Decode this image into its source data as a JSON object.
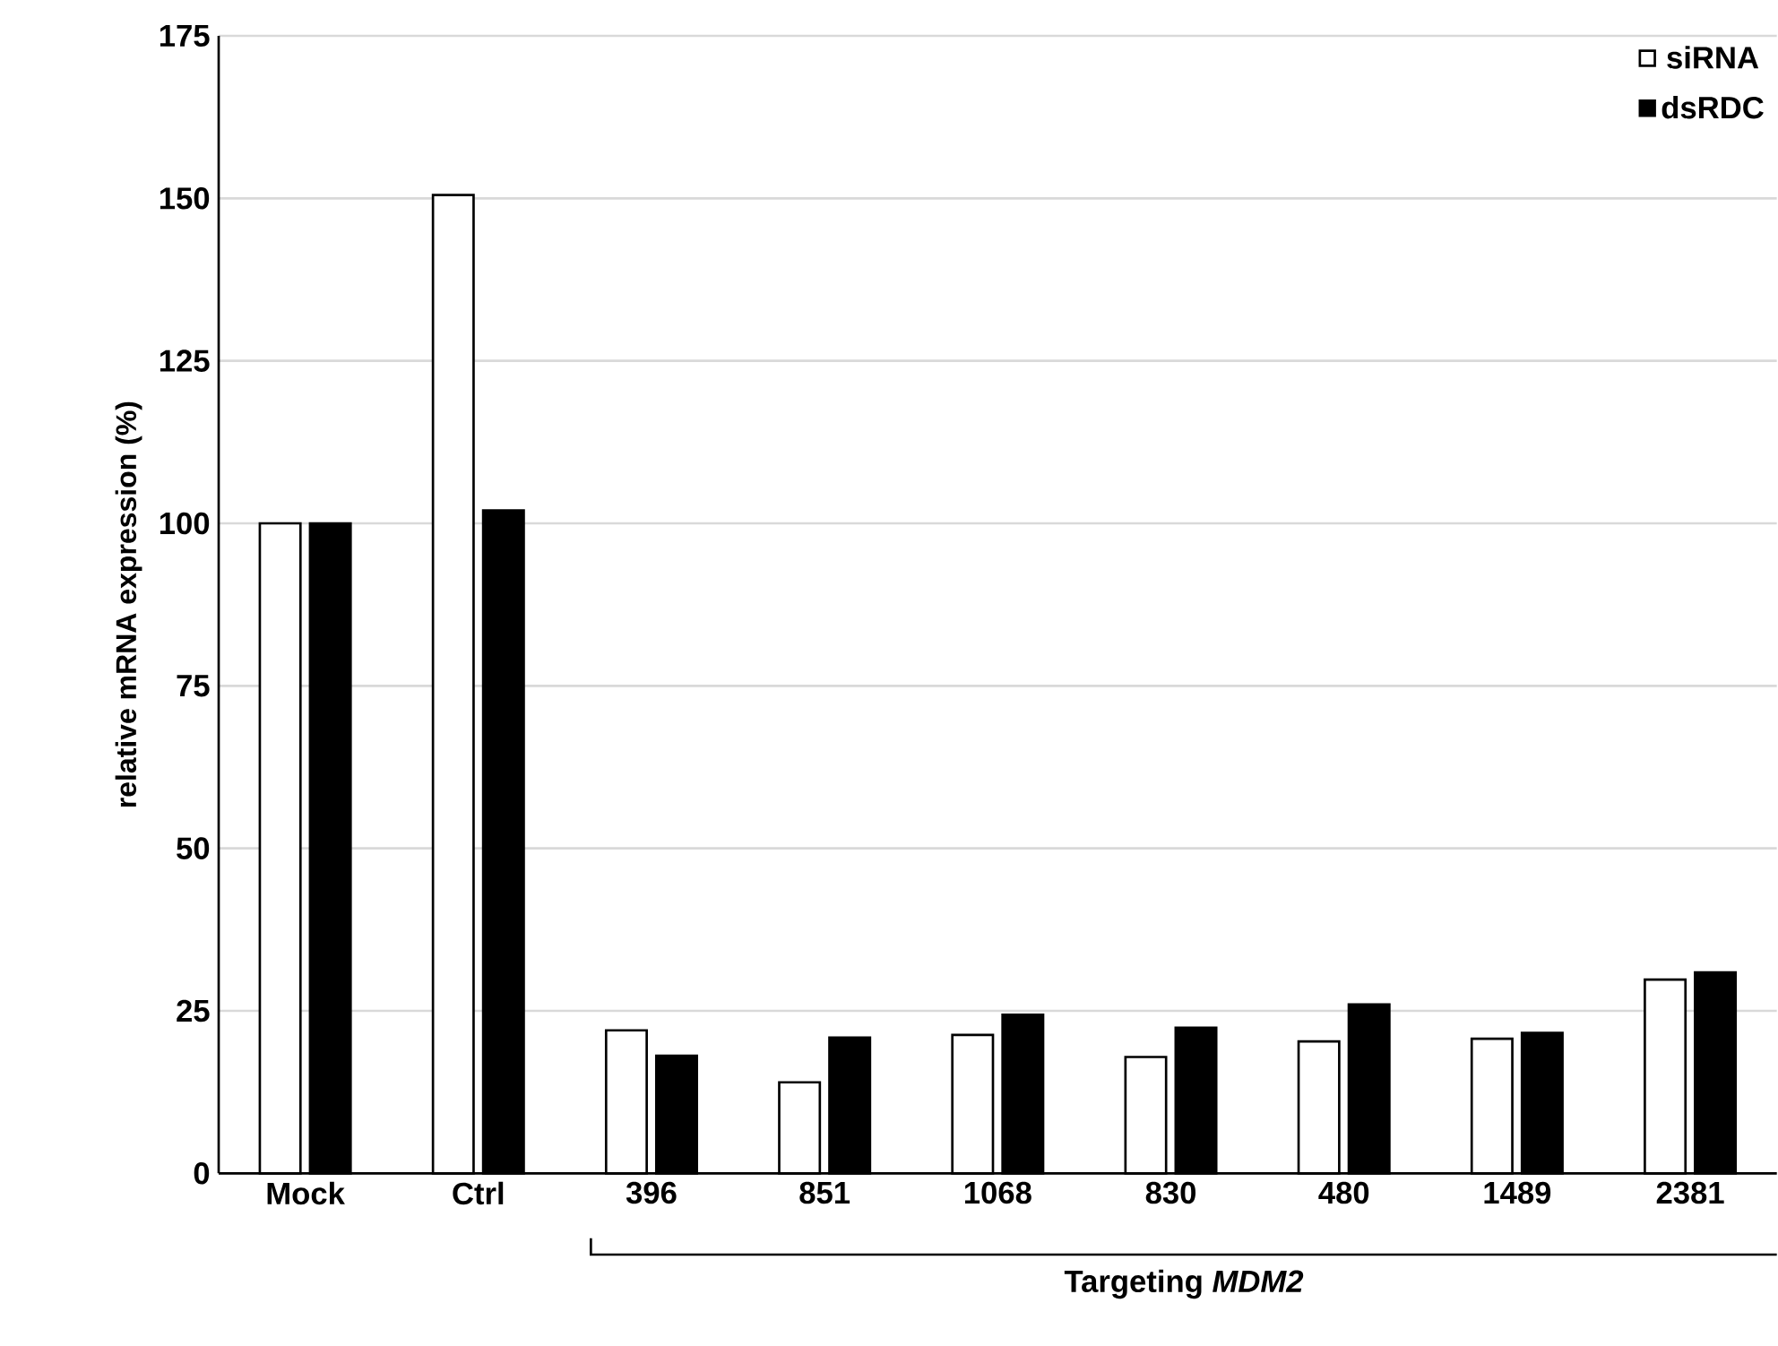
{
  "chart_data": {
    "type": "bar",
    "ylabel": "relative mRNA expression (%)",
    "categories": [
      "Mock",
      "Ctrl",
      "396",
      "851",
      "1068",
      "830",
      "480",
      "1489",
      "2381"
    ],
    "series": [
      {
        "name": "siRNA",
        "color": "#ffffff",
        "values": [
          100,
          150.5,
          22,
          14,
          21.3,
          17.9,
          20.3,
          20.7,
          29.8
        ]
      },
      {
        "name": "dsRDC",
        "color": "#000000",
        "values": [
          100,
          102,
          18.1,
          20.9,
          24.4,
          22.4,
          26,
          21.6,
          30.9
        ]
      }
    ],
    "ylim": [
      0,
      175
    ],
    "yticks": [
      0,
      25,
      50,
      75,
      100,
      125,
      150,
      175
    ],
    "grid": "y",
    "legend": "top right",
    "annotations": [
      "Targeting *MDM2*"
    ]
  }
}
